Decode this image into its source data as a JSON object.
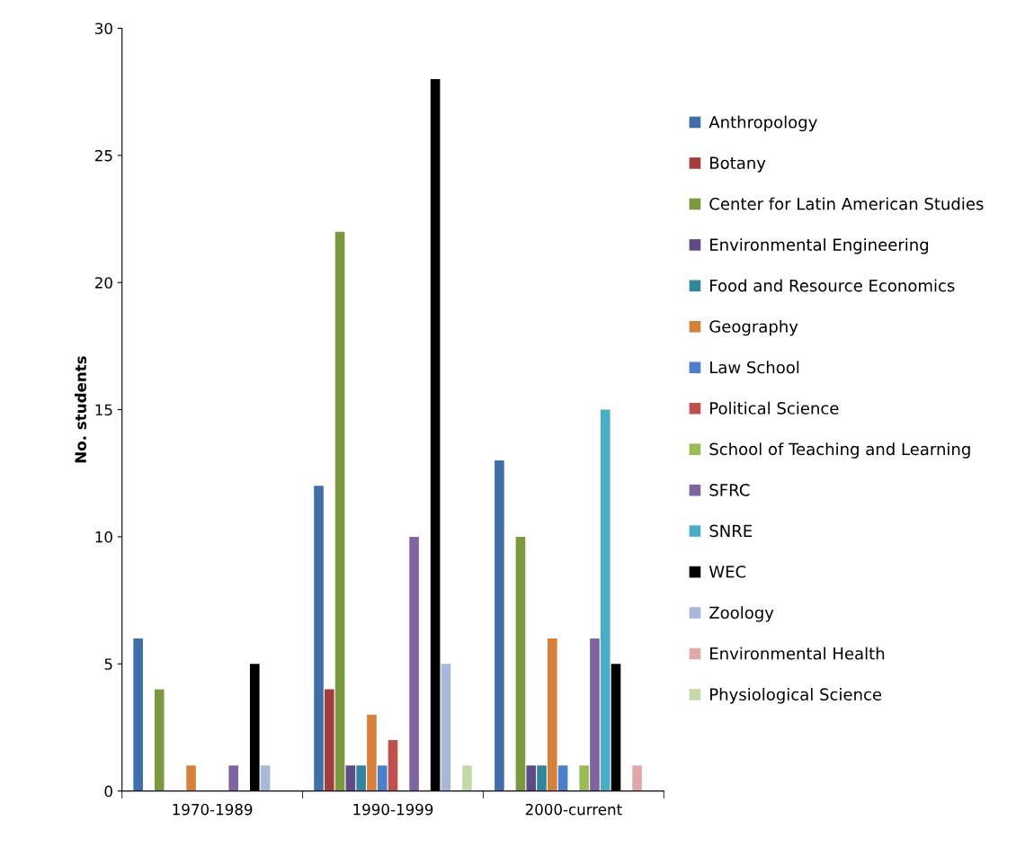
{
  "chart_data": {
    "type": "bar",
    "ylabel": "No. students",
    "categories": [
      "1970-1989",
      "1990-1999",
      "2000-current"
    ],
    "ylim": [
      0,
      30
    ],
    "yticks": [
      0,
      5,
      10,
      15,
      20,
      25,
      30
    ],
    "grid": false,
    "legend": "right",
    "series": [
      {
        "name": "Anthropology",
        "color": "#3f6ea8",
        "values": [
          6,
          12,
          13
        ]
      },
      {
        "name": "Botany",
        "color": "#a33c3a",
        "values": [
          0,
          4,
          0
        ]
      },
      {
        "name": "Center for Latin American Studies",
        "color": "#7b9a3f",
        "values": [
          4,
          22,
          10
        ]
      },
      {
        "name": "Environmental Engineering",
        "color": "#5f4a87",
        "values": [
          0,
          1,
          1
        ]
      },
      {
        "name": "Food and Resource Economics",
        "color": "#31859c",
        "values": [
          0,
          1,
          1
        ]
      },
      {
        "name": "Geography",
        "color": "#d7803a",
        "values": [
          1,
          3,
          6
        ]
      },
      {
        "name": "Law School",
        "color": "#4a7fc9",
        "values": [
          0,
          1,
          1
        ]
      },
      {
        "name": "Political Science",
        "color": "#c0504d",
        "values": [
          0,
          2,
          0
        ]
      },
      {
        "name": "School of Teaching and Learning",
        "color": "#9bbb59",
        "values": [
          0,
          0,
          1
        ]
      },
      {
        "name": "SFRC",
        "color": "#8064a2",
        "values": [
          1,
          10,
          6
        ]
      },
      {
        "name": "SNRE",
        "color": "#4bacc6",
        "values": [
          0,
          0,
          15
        ]
      },
      {
        "name": "WEC",
        "color": "#000000",
        "values": [
          5,
          28,
          5
        ]
      },
      {
        "name": "Zoology",
        "color": "#a9b8d8",
        "values": [
          1,
          5,
          0
        ]
      },
      {
        "name": "Environmental Health",
        "color": "#e0a8a8",
        "values": [
          0,
          0,
          1
        ]
      },
      {
        "name": "Physiological Science",
        "color": "#c4d9a8",
        "values": [
          0,
          1,
          0
        ]
      }
    ]
  }
}
